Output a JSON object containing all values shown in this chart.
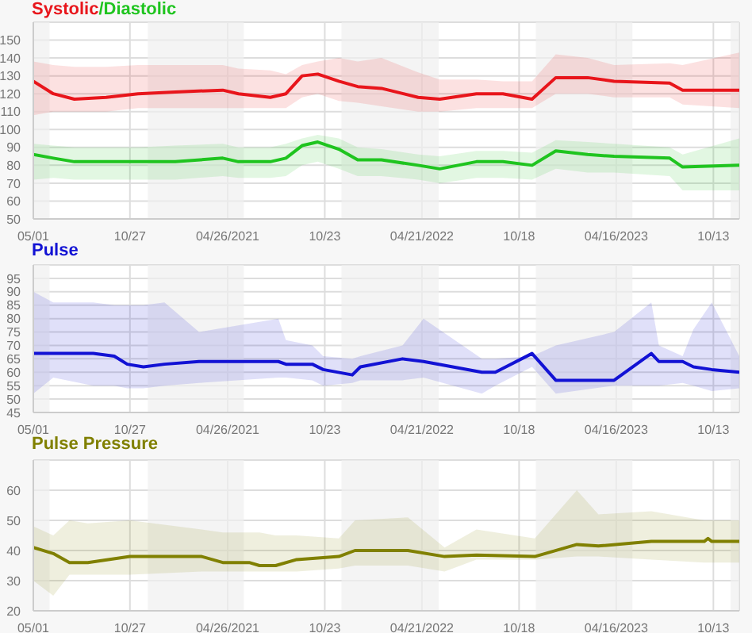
{
  "chart_data": [
    {
      "type": "line",
      "legend": "top left",
      "grid": true,
      "marker": "none",
      "line_style": "solid",
      "annotations": [
        "/"
      ],
      "x": [
        "2020-05-01",
        "2020-06-07",
        "2020-07-16",
        "2020-09-13",
        "2020-11-11",
        "2021-01-19",
        "2021-04-17",
        "2021-05-16",
        "2021-07-14",
        "2021-08-12",
        "2021-09-11",
        "2021-10-10",
        "2021-11-18",
        "2021-12-23",
        "2022-02-05",
        "2022-04-14",
        "2022-05-24",
        "2022-07-31",
        "2022-09-18",
        "2022-11-11",
        "2022-12-25",
        "2023-02-22",
        "2023-04-12",
        "2023-07-24",
        "2023-08-17",
        "2023-11-30"
      ],
      "series": [
        {
          "name": "Systolic",
          "color": "#e8151b",
          "values": [
            127,
            120,
            117,
            118,
            120,
            121,
            122,
            120,
            118,
            120,
            130,
            131,
            127,
            124,
            123,
            118,
            117,
            120,
            120,
            117,
            129,
            129,
            127,
            126,
            122,
            122
          ],
          "upper": [
            138,
            136,
            135,
            135,
            136,
            136,
            136,
            134,
            133,
            131,
            136,
            138,
            140,
            138,
            140,
            132,
            128,
            128,
            127,
            127,
            142,
            140,
            136,
            137,
            136,
            143
          ],
          "lower": [
            108,
            110,
            110,
            110,
            112,
            112,
            112,
            112,
            112,
            112,
            118,
            120,
            116,
            115,
            113,
            110,
            110,
            112,
            112,
            112,
            120,
            120,
            118,
            118,
            114,
            112
          ]
        },
        {
          "name": "Diastolic",
          "color": "#1fc41f",
          "values": [
            86,
            84,
            82,
            82,
            82,
            82,
            84,
            82,
            82,
            84,
            91,
            93,
            89,
            83,
            83,
            80,
            78,
            82,
            82,
            80,
            88,
            86,
            85,
            84,
            79,
            80
          ],
          "upper": [
            92,
            91,
            90,
            90,
            90,
            91,
            92,
            90,
            90,
            92,
            95,
            97,
            95,
            90,
            89,
            86,
            85,
            88,
            88,
            87,
            94,
            93,
            92,
            90,
            86,
            95
          ],
          "lower": [
            72,
            73,
            72,
            72,
            72,
            72,
            74,
            73,
            73,
            74,
            80,
            82,
            78,
            74,
            74,
            72,
            70,
            73,
            73,
            72,
            78,
            76,
            76,
            74,
            66,
            66
          ]
        }
      ],
      "xlim": [
        "2020-05-01",
        "2023-11-30"
      ],
      "xticks": [
        {
          "value": "2020-05-01",
          "label": "05/01"
        },
        {
          "value": "2020-10-27",
          "label": "10/27"
        },
        {
          "value": "2021-04-26",
          "label": "04/26/2021"
        },
        {
          "value": "2021-10-23",
          "label": "10/23"
        },
        {
          "value": "2022-04-21",
          "label": "04/21/2022"
        },
        {
          "value": "2022-10-18",
          "label": "10/18"
        },
        {
          "value": "2023-04-16",
          "label": "04/16/2023"
        },
        {
          "value": "2023-10-13",
          "label": "10/13"
        }
      ],
      "ylim": [
        50,
        160
      ],
      "yticks": [
        50,
        60,
        70,
        80,
        90,
        100,
        110,
        120,
        130,
        140,
        150,
        {
          "value": 160,
          "label": null
        }
      ],
      "bands": [
        {
          "axis": "x",
          "from": "2020-05-01",
          "to": "2020-05-31",
          "color": "#f0f0f0"
        },
        {
          "axis": "x",
          "from": "2020-11-29",
          "to": "2021-05-26",
          "color": "#f0f0f0"
        },
        {
          "axis": "x",
          "from": "2021-11-23",
          "to": "2022-05-22",
          "color": "#f0f0f0"
        },
        {
          "axis": "x",
          "from": "2022-11-18",
          "to": "2023-05-16",
          "color": "#f0f0f0"
        },
        {
          "axis": "x",
          "from": "2023-11-14",
          "to": "2023-11-30",
          "color": "#f0f0f0"
        }
      ]
    },
    {
      "type": "line",
      "legend": "top left",
      "grid": true,
      "marker": "none",
      "line_style": "solid",
      "x": [
        "2020-05-01",
        "2020-06-07",
        "2020-08-20",
        "2020-09-28",
        "2020-10-22",
        "2020-11-21",
        "2020-12-30",
        "2021-03-04",
        "2021-07-29",
        "2021-08-12",
        "2021-09-30",
        "2021-10-20",
        "2021-12-13",
        "2021-12-28",
        "2022-03-16",
        "2022-04-24",
        "2022-08-10",
        "2022-09-04",
        "2022-11-11",
        "2022-12-25",
        "2023-04-12",
        "2023-06-20",
        "2023-07-04",
        "2023-08-17",
        "2023-09-06",
        "2023-10-10",
        "2023-11-30"
      ],
      "series": [
        {
          "name": "Pulse",
          "color": "#1212d4",
          "values": [
            67,
            67,
            67,
            66,
            63,
            62,
            63,
            64,
            64,
            63,
            63,
            61,
            59,
            62,
            65,
            64,
            60,
            60,
            67,
            57,
            57,
            67,
            64,
            64,
            62,
            61,
            60
          ],
          "upper": [
            90,
            86,
            86,
            85,
            85,
            85,
            86,
            75,
            80,
            72,
            70,
            66,
            65,
            66,
            70,
            80,
            65,
            65,
            66,
            70,
            75,
            86,
            70,
            66,
            76,
            86,
            66
          ],
          "lower": [
            52,
            58,
            55,
            55,
            54,
            54,
            55,
            56,
            58,
            58,
            57,
            55,
            56,
            57,
            57,
            58,
            52,
            55,
            62,
            52,
            55,
            55,
            55,
            56,
            55,
            53,
            54
          ]
        }
      ],
      "xlim": [
        "2020-05-01",
        "2023-11-30"
      ],
      "xticks": [
        {
          "value": "2020-05-01",
          "label": "05/01"
        },
        {
          "value": "2020-10-27",
          "label": "10/27"
        },
        {
          "value": "2021-04-26",
          "label": "04/26/2021"
        },
        {
          "value": "2021-10-23",
          "label": "10/23"
        },
        {
          "value": "2022-04-21",
          "label": "04/21/2022"
        },
        {
          "value": "2022-10-18",
          "label": "10/18"
        },
        {
          "value": "2023-04-16",
          "label": "04/16/2023"
        },
        {
          "value": "2023-10-13",
          "label": "10/13"
        }
      ],
      "ylim": [
        45,
        100
      ],
      "yticks": [
        45,
        50,
        55,
        60,
        65,
        70,
        75,
        80,
        85,
        90,
        95,
        {
          "value": 100,
          "label": null
        }
      ],
      "bands": [
        {
          "axis": "x",
          "from": "2020-05-01",
          "to": "2020-05-31",
          "color": "#f0f0f0"
        },
        {
          "axis": "x",
          "from": "2020-11-29",
          "to": "2021-05-26",
          "color": "#f0f0f0"
        },
        {
          "axis": "x",
          "from": "2021-11-23",
          "to": "2022-05-22",
          "color": "#f0f0f0"
        },
        {
          "axis": "x",
          "from": "2022-11-18",
          "to": "2023-05-16",
          "color": "#f0f0f0"
        },
        {
          "axis": "x",
          "from": "2023-11-14",
          "to": "2023-11-30",
          "color": "#f0f0f0"
        }
      ]
    },
    {
      "type": "line",
      "legend": "top left",
      "grid": true,
      "marker": "none",
      "line_style": "solid",
      "x": [
        "2020-05-01",
        "2020-06-07",
        "2020-07-07",
        "2020-08-10",
        "2020-10-27",
        "2021-03-09",
        "2021-04-17",
        "2021-06-05",
        "2021-06-24",
        "2021-07-24",
        "2021-09-01",
        "2021-11-18",
        "2021-12-18",
        "2022-03-26",
        "2022-06-02",
        "2022-07-31",
        "2022-11-16",
        "2023-02-02",
        "2023-03-14",
        "2023-06-20",
        "2023-09-26",
        "2023-10-03",
        "2023-10-10",
        "2023-11-30"
      ],
      "series": [
        {
          "name": "Pulse Pressure",
          "color": "#808000",
          "values": [
            41,
            39,
            36,
            36,
            38,
            38,
            36,
            36,
            35,
            35,
            37,
            38,
            40,
            40,
            38,
            38.5,
            38,
            42,
            41.5,
            43,
            43,
            44,
            43,
            43
          ],
          "upper": [
            48,
            45,
            50,
            49,
            50,
            47,
            46,
            46,
            46,
            45,
            45,
            44,
            50,
            51,
            41,
            47,
            44,
            60,
            52,
            53,
            50,
            50,
            50,
            50
          ],
          "lower": [
            30,
            25,
            32,
            32,
            32,
            33,
            33,
            33,
            33,
            33,
            33,
            34,
            35,
            35,
            33,
            37,
            37,
            38,
            38,
            37,
            36,
            36,
            36,
            36
          ]
        }
      ],
      "xlim": [
        "2020-05-01",
        "2023-11-30"
      ],
      "xticks": [
        {
          "value": "2020-05-01",
          "label": "05/01"
        },
        {
          "value": "2020-10-27",
          "label": "10/27"
        },
        {
          "value": "2021-04-26",
          "label": "04/26/2021"
        },
        {
          "value": "2021-10-23",
          "label": "10/23"
        },
        {
          "value": "2022-04-21",
          "label": "04/21/2022"
        },
        {
          "value": "2022-10-18",
          "label": "10/18"
        },
        {
          "value": "2023-04-16",
          "label": "04/16/2023"
        },
        {
          "value": "2023-10-13",
          "label": "10/13"
        }
      ],
      "ylim": [
        20,
        70
      ],
      "yticks": [
        20,
        30,
        40,
        50,
        60,
        {
          "value": 70,
          "label": null
        }
      ],
      "bands": [
        {
          "axis": "x",
          "from": "2020-05-01",
          "to": "2020-05-31",
          "color": "#f0f0f0"
        },
        {
          "axis": "x",
          "from": "2020-11-29",
          "to": "2021-05-26",
          "color": "#f0f0f0"
        },
        {
          "axis": "x",
          "from": "2021-11-23",
          "to": "2022-05-22",
          "color": "#f0f0f0"
        },
        {
          "axis": "x",
          "from": "2022-11-18",
          "to": "2023-05-16",
          "color": "#f0f0f0"
        },
        {
          "axis": "x",
          "from": "2023-11-14",
          "to": "2023-11-30",
          "color": "#f0f0f0"
        }
      ]
    }
  ]
}
